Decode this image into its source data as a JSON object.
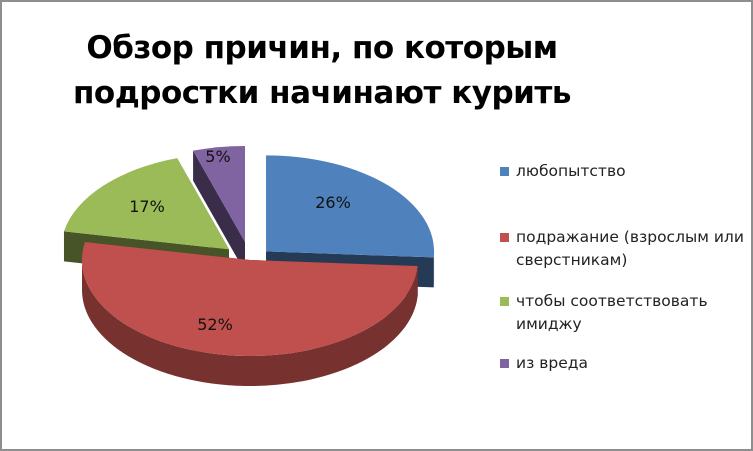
{
  "chart_data": {
    "type": "pie",
    "title_lines": [
      "Обзор причин, по которым",
      "подростки начинают курить"
    ],
    "categories": [
      "любопытство",
      "подражание (взрослым или сверстникам)",
      "чтобы соответствовать имиджу",
      "из вреда"
    ],
    "values": [
      26,
      52,
      17,
      5
    ],
    "data_labels": [
      "26%",
      "52%",
      "17%",
      "5%"
    ],
    "colors": [
      "#4f81bd",
      "#c0504d",
      "#9bbb59",
      "#8064a2"
    ],
    "legend_position": "right",
    "style": "3d-exploded"
  }
}
